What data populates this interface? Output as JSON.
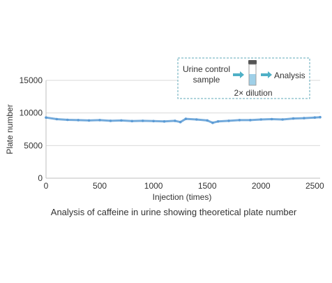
{
  "chart_data": {
    "type": "scatter",
    "title": "",
    "caption": "Analysis of caffeine in urine showing theoretical plate number",
    "xlabel": "Injection (times)",
    "ylabel": "Plate number",
    "xlim": [
      0,
      2550
    ],
    "ylim": [
      0,
      15000
    ],
    "x_ticks": [
      0,
      500,
      1000,
      1500,
      2000,
      2500
    ],
    "y_ticks": [
      0,
      5000,
      10000,
      15000
    ],
    "x_tick_labels": [
      "0",
      "500",
      "1000",
      "1500",
      "2000",
      "2500"
    ],
    "y_tick_labels": [
      "0",
      "5000",
      "10000",
      "15000"
    ],
    "grid": "horizontal",
    "legend": "none",
    "series_color": "#5b9bd5",
    "series": [
      {
        "x": [
          0,
          100,
          200,
          300,
          400,
          500,
          600,
          700,
          800,
          900,
          1000,
          1100,
          1200,
          1250,
          1300,
          1400,
          1500,
          1550,
          1600,
          1700,
          1800,
          1900,
          2000,
          2100,
          2200,
          2300,
          2400,
          2500,
          2550
        ],
        "values": [
          9300,
          9050,
          8950,
          8900,
          8850,
          8900,
          8800,
          8850,
          8750,
          8800,
          8750,
          8700,
          8800,
          8600,
          9100,
          9000,
          8850,
          8500,
          8700,
          8800,
          8900,
          8900,
          9000,
          9050,
          9000,
          9150,
          9200,
          9300,
          9350
        ]
      }
    ],
    "inset": {
      "sample_label_line1": "Urine control",
      "sample_label_line2": "sample",
      "result_label": "Analysis",
      "dilution_label": "2× dilution",
      "border_color": "#5fa8b8",
      "arrow_color": "#4fb0c6",
      "vial_fill": "#9fd0e8"
    }
  }
}
